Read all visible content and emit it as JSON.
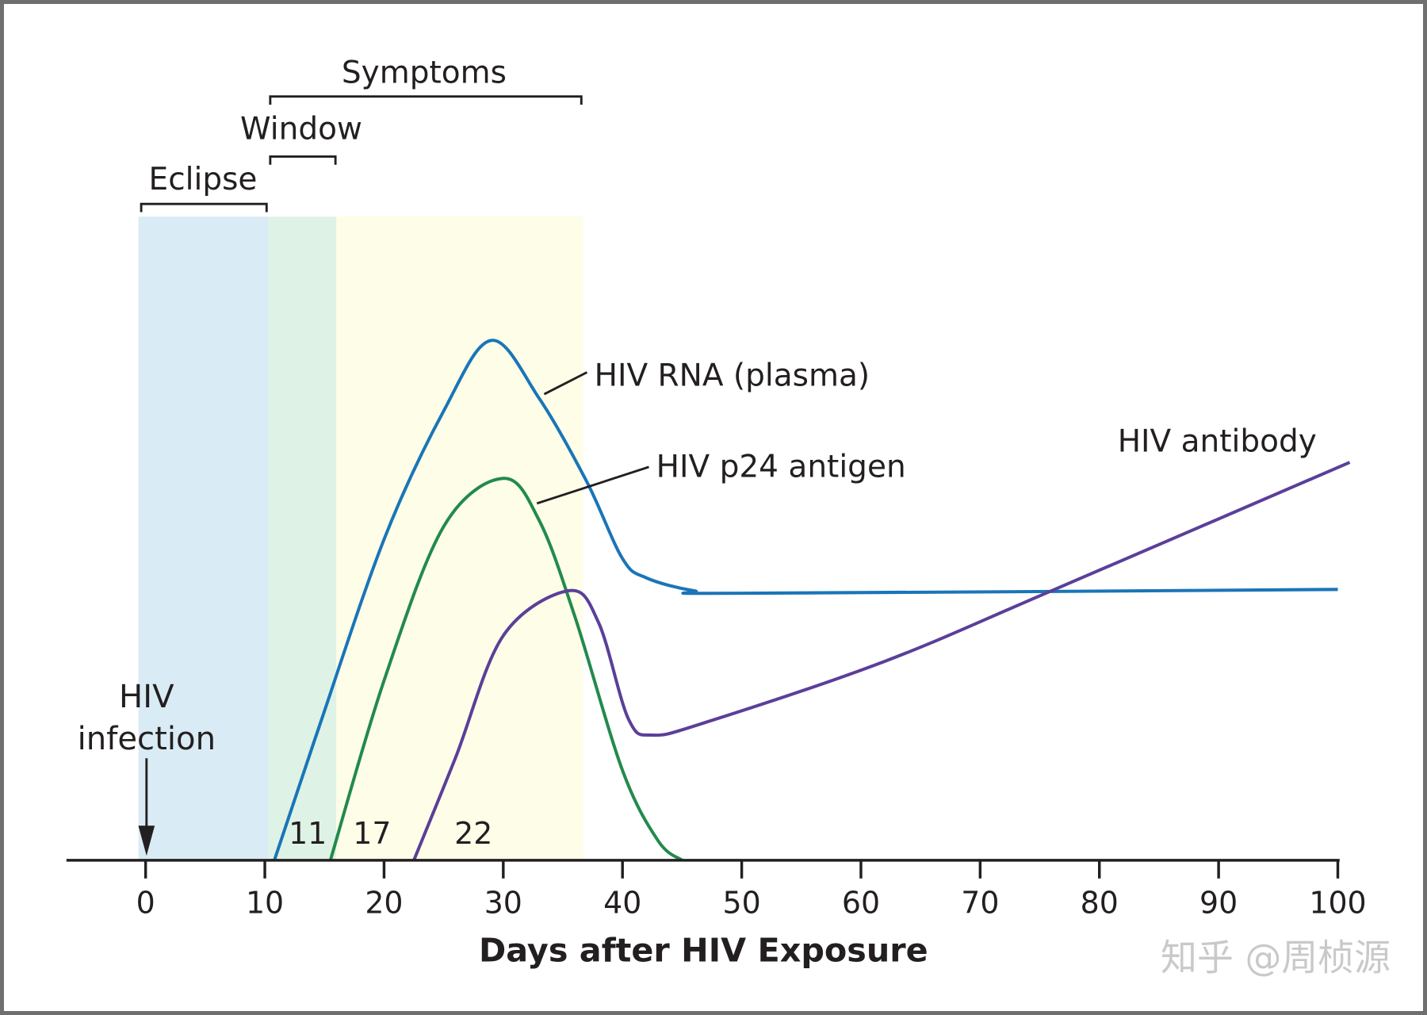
{
  "chart_data": {
    "type": "line",
    "xlabel": "Days after HIV Exposure",
    "ylabel": "",
    "xlim": [
      -7,
      100
    ],
    "xticks": [
      0,
      10,
      20,
      30,
      40,
      50,
      60,
      70,
      80,
      90,
      100
    ],
    "ylim": [
      0,
      100
    ],
    "y_units": "relative level (no axis printed)",
    "grid": false,
    "periods": [
      {
        "label": "Eclipse",
        "start": -0.6,
        "end": 10.3,
        "color": "#d9ecf5"
      },
      {
        "label": "Window",
        "start": 10.3,
        "end": 16,
        "color": "#def3e6"
      },
      {
        "label": "Symptoms",
        "start": 10.3,
        "end": 36.7,
        "shade_start": 16,
        "color": "#fefee8"
      }
    ],
    "series": [
      {
        "name": "HIV RNA (plasma)",
        "color": "#1a75b8",
        "x": [
          10.8,
          14.5,
          20,
          25,
          29,
          33,
          37,
          40,
          42,
          46,
          50,
          100
        ],
        "y": [
          0,
          20.5,
          50,
          70,
          81,
          72,
          59,
          47,
          44,
          42,
          41.6,
          42.2
        ]
      },
      {
        "name": "HIV p24 antigen",
        "color": "#238a4c",
        "x": [
          15.5,
          20,
          25,
          30,
          33,
          36,
          40,
          43,
          45
        ],
        "y": [
          0,
          28,
          52,
          59.5,
          53,
          38,
          14,
          3,
          0
        ]
      },
      {
        "name": "HIV antibody",
        "color": "#5b3f99",
        "x": [
          22.5,
          26,
          30,
          35.5,
          38,
          40.5,
          42.5,
          47,
          62,
          76,
          101
        ],
        "y": [
          0,
          16,
          35,
          42,
          37,
          22,
          19.5,
          21.5,
          31,
          42,
          62
        ]
      }
    ],
    "annotations": [
      {
        "text": "HIV",
        "x": 0
      },
      {
        "text": "infection",
        "x": 0
      },
      {
        "text": "11",
        "x": 13.6
      },
      {
        "text": "17",
        "x": 19
      },
      {
        "text": "22",
        "x": 27.5
      }
    ],
    "watermark": "知乎 @周桢源"
  }
}
